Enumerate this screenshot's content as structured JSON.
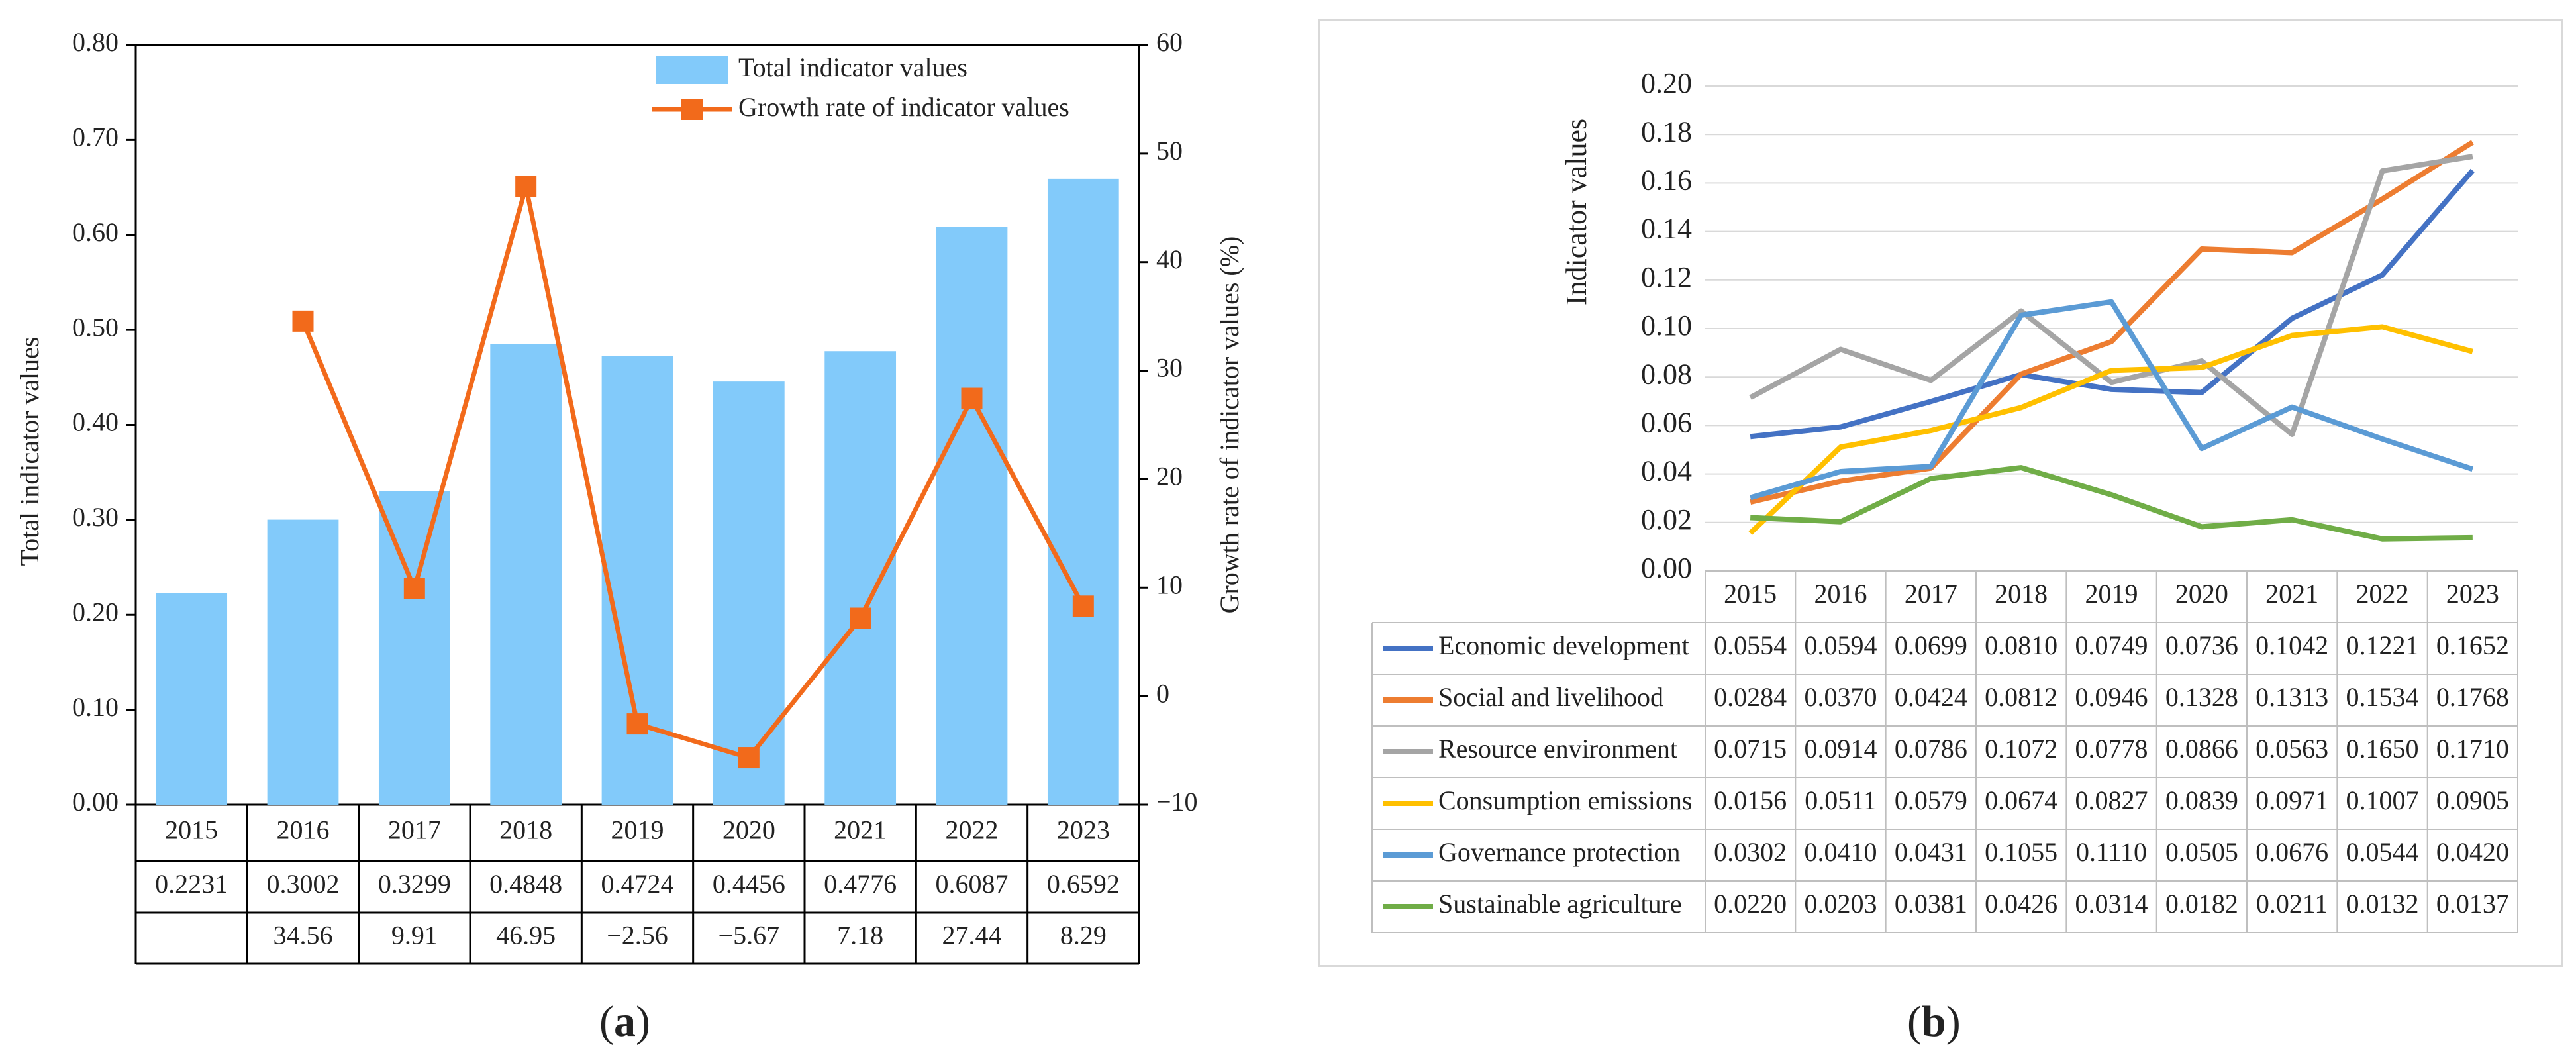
{
  "chart_data": [
    {
      "id": "a",
      "type": "bar",
      "panel_label": "a",
      "categories": [
        "2015",
        "2016",
        "2017",
        "2018",
        "2019",
        "2020",
        "2021",
        "2022",
        "2023"
      ],
      "series": [
        {
          "name": "Total indicator values",
          "type": "bar",
          "color": "#82CAFA",
          "axis": "left",
          "values": [
            0.2231,
            0.3002,
            0.3299,
            0.4848,
            0.4724,
            0.4456,
            0.4776,
            0.6087,
            0.6592
          ],
          "table_labels": [
            "0.2231",
            "0.3002",
            "0.3299",
            "0.4848",
            "0.4724",
            "0.4456",
            "0.4776",
            "0.6087",
            "0.6592"
          ]
        },
        {
          "name": "Growth rate of indicator values",
          "type": "line",
          "color": "#F26A1B",
          "axis": "right",
          "values": [
            null,
            34.56,
            9.91,
            46.95,
            -2.56,
            -5.67,
            7.18,
            27.44,
            8.29
          ],
          "table_labels": [
            "",
            "34.56",
            "9.91",
            "46.95",
            "−2.56",
            "−5.67",
            "7.18",
            "27.44",
            "8.29"
          ]
        }
      ],
      "ylabel_left": "Total indicator values",
      "ylabel_right": "Growth rate of indicator values (%)",
      "ylim_left": [
        0,
        0.8
      ],
      "ylim_right": [
        -10,
        60
      ],
      "yticks_left": [
        "0.00",
        "0.10",
        "0.20",
        "0.30",
        "0.40",
        "0.50",
        "0.60",
        "0.70",
        "0.80"
      ],
      "yticks_right": [
        "−10",
        "0",
        "10",
        "20",
        "30",
        "40",
        "50",
        "60"
      ],
      "legend_position": "top-right"
    },
    {
      "id": "b",
      "type": "line",
      "panel_label": "b",
      "categories": [
        "2015",
        "2016",
        "2017",
        "2018",
        "2019",
        "2020",
        "2021",
        "2022",
        "2023"
      ],
      "ylabel": "Indicator values",
      "ylim": [
        0,
        0.2
      ],
      "yticks": [
        "0.00",
        "0.02",
        "0.04",
        "0.06",
        "0.08",
        "0.10",
        "0.12",
        "0.14",
        "0.16",
        "0.18",
        "0.20"
      ],
      "gridlines": true,
      "series": [
        {
          "name": "Economic development",
          "color": "#4472C4",
          "values": [
            0.0554,
            0.0594,
            0.0699,
            0.081,
            0.0749,
            0.0736,
            0.1042,
            0.1221,
            0.1652
          ],
          "labels": [
            "0.0554",
            "0.0594",
            "0.0699",
            "0.0810",
            "0.0749",
            "0.0736",
            "0.1042",
            "0.1221",
            "0.1652"
          ]
        },
        {
          "name": "Social and livelihood",
          "color": "#ED7D31",
          "values": [
            0.0284,
            0.037,
            0.0424,
            0.0812,
            0.0946,
            0.1328,
            0.1313,
            0.1534,
            0.1768
          ],
          "labels": [
            "0.0284",
            "0.0370",
            "0.0424",
            "0.0812",
            "0.0946",
            "0.1328",
            "0.1313",
            "0.1534",
            "0.1768"
          ]
        },
        {
          "name": "Resource environment",
          "color": "#A5A5A5",
          "values": [
            0.0715,
            0.0914,
            0.0786,
            0.1072,
            0.0778,
            0.0866,
            0.0563,
            0.165,
            0.171
          ],
          "labels": [
            "0.0715",
            "0.0914",
            "0.0786",
            "0.1072",
            "0.0778",
            "0.0866",
            "0.0563",
            "0.1650",
            "0.1710"
          ]
        },
        {
          "name": "Consumption emissions",
          "color": "#FFC000",
          "values": [
            0.0156,
            0.0511,
            0.0579,
            0.0674,
            0.0827,
            0.0839,
            0.0971,
            0.1007,
            0.0905
          ],
          "labels": [
            "0.0156",
            "0.0511",
            "0.0579",
            "0.0674",
            "0.0827",
            "0.0839",
            "0.0971",
            "0.1007",
            "0.0905"
          ]
        },
        {
          "name": "Governance protection",
          "color": "#5B9BD5",
          "values": [
            0.0302,
            0.041,
            0.0431,
            0.1055,
            0.111,
            0.0505,
            0.0676,
            0.0544,
            0.042
          ],
          "labels": [
            "0.0302",
            "0.0410",
            "0.0431",
            "0.1055",
            "0.1110",
            "0.0505",
            "0.0676",
            "0.0544",
            "0.0420"
          ]
        },
        {
          "name": "Sustainable agriculture",
          "color": "#70AD47",
          "values": [
            0.022,
            0.0203,
            0.0381,
            0.0426,
            0.0314,
            0.0182,
            0.0211,
            0.0132,
            0.0137
          ],
          "labels": [
            "0.0220",
            "0.0203",
            "0.0381",
            "0.0426",
            "0.0314",
            "0.0182",
            "0.0211",
            "0.0132",
            "0.0137"
          ]
        }
      ]
    }
  ]
}
